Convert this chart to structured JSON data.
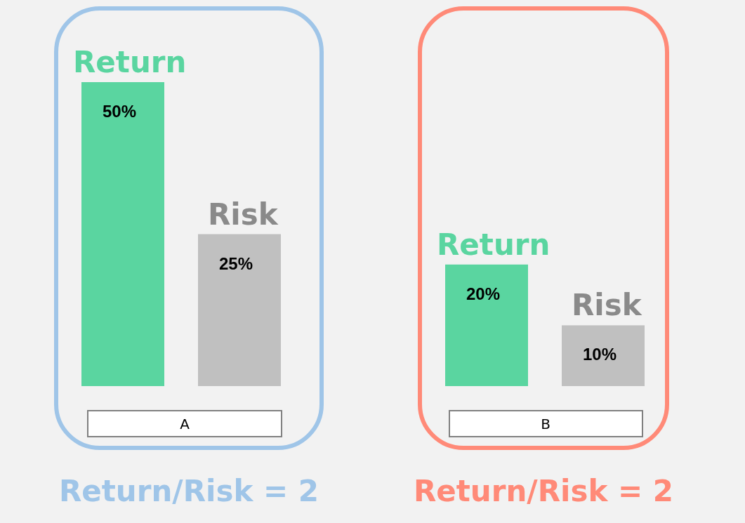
{
  "chart_data": [
    {
      "type": "bar",
      "categories": [
        "Return",
        "Risk"
      ],
      "values": [
        50,
        25
      ],
      "colors": [
        "#5ad5a0",
        "#c0c0c0"
      ],
      "value_labels": [
        "50%",
        "25%"
      ],
      "xlabel": "A",
      "annotations": [
        "Return/Risk = 2"
      ]
    },
    {
      "type": "bar",
      "categories": [
        "Return",
        "Risk"
      ],
      "values": [
        20,
        10
      ],
      "colors": [
        "#5ad5a0",
        "#c0c0c0"
      ],
      "value_labels": [
        "20%",
        "10%"
      ],
      "xlabel": "B",
      "annotations": [
        "Return/Risk = 2"
      ]
    }
  ]
}
